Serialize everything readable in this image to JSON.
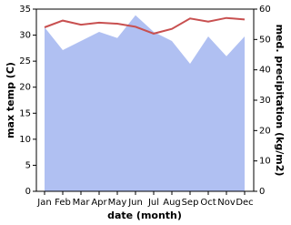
{
  "chart_data": {
    "type": "area-line",
    "x_label": "date (month)",
    "y_label": "max temp (C)",
    "y2_label": "med. precipitation (kg/m2)",
    "categories": [
      "Jan",
      "Feb",
      "Mar",
      "Apr",
      "May",
      "Jun",
      "Jul",
      "Aug",
      "Sep",
      "Oct",
      "Nov",
      "Dec"
    ],
    "series": [
      {
        "name": "med. precipitation",
        "color": "#b0c0f2",
        "axis": "y2",
        "kind": "area",
        "values": [
          54,
          46.5,
          49.5,
          52.5,
          50.5,
          58,
          52.5,
          49.5,
          42,
          51,
          44.5,
          51
        ]
      },
      {
        "name": "max temp",
        "color": "#c85050",
        "kind": "line",
        "values": [
          31.5,
          32.8,
          32,
          32.4,
          32.2,
          31.6,
          30.3,
          31.2,
          33.2,
          32.6,
          33.3,
          33.0
        ]
      }
    ],
    "ylim": [
      0,
      35
    ],
    "yticks": [
      0,
      5,
      10,
      15,
      20,
      25,
      30,
      35
    ],
    "y2lim": [
      0,
      60
    ],
    "y2ticks": [
      0,
      10,
      20,
      30,
      40,
      50,
      60
    ]
  }
}
